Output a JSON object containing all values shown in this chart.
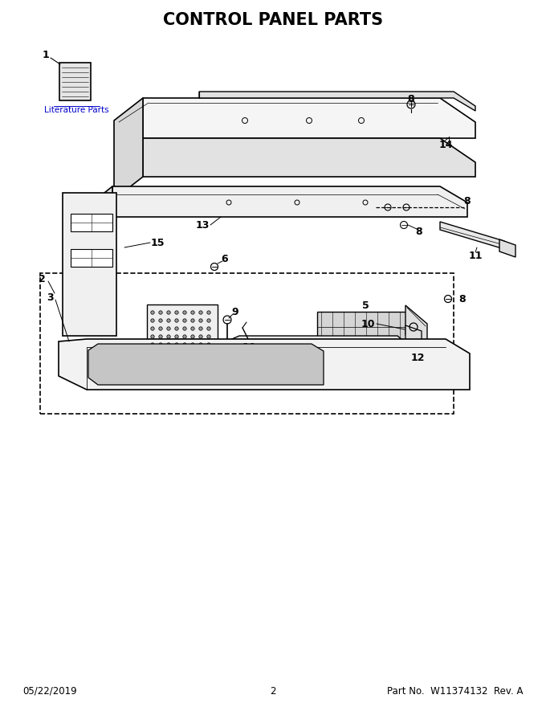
{
  "title": "CONTROL PANEL PARTS",
  "title_fontsize": 15,
  "title_fontweight": "bold",
  "footer_left": "05/22/2019",
  "footer_center": "2",
  "footer_right": "Part No.  W11374132  Rev. A",
  "footer_fontsize": 8.5,
  "bg_color": "#ffffff",
  "lc": "#000000",
  "fig_width": 6.8,
  "fig_height": 8.8,
  "dpi": 100,
  "lit_parts_text": "Literature Parts",
  "lit_parts_color": "#0000cc",
  "lit_parts_fontsize": 7.5
}
